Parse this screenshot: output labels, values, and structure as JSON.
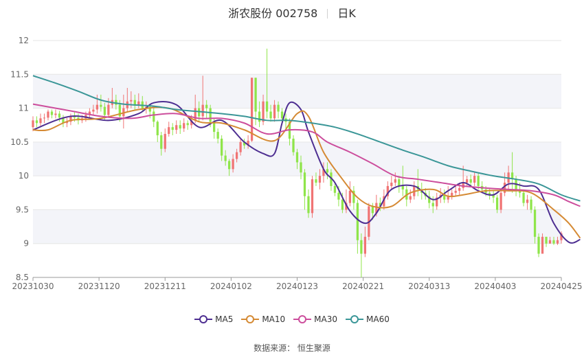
{
  "header": {
    "name": "浙农股份 002758",
    "period": "日K"
  },
  "source": "数据来源： 恒生聚源",
  "colors": {
    "up": "#f07474",
    "down": "#8fe54a",
    "MA5": "#4d2e91",
    "MA10": "#d58a34",
    "MA30": "#cc4d9c",
    "MA60": "#3a9697",
    "grid": "#e6e6e6",
    "band": "#f3f4f9"
  },
  "chart_data": {
    "type": "candlestick",
    "ylim": [
      8.5,
      12
    ],
    "yticks": [
      "8.5",
      "9",
      "9.5",
      "10",
      "10.5",
      "11",
      "11.5",
      "12"
    ],
    "xticks": [
      "20231030",
      "20231120",
      "20231211",
      "20240102",
      "20240123",
      "20240221",
      "20240313",
      "20240403",
      "20240425"
    ],
    "legend_position": "bottom",
    "series": [
      {
        "name": "MA5",
        "points": [
          [
            0,
            10.68
          ],
          [
            10,
            10.88
          ],
          [
            20,
            10.82
          ],
          [
            28,
            10.92
          ],
          [
            32,
            11.08
          ],
          [
            38,
            11.05
          ],
          [
            44,
            10.72
          ],
          [
            50,
            10.82
          ],
          [
            56,
            10.5
          ],
          [
            61,
            10.33
          ],
          [
            64,
            10.33
          ],
          [
            66,
            10.78
          ],
          [
            68,
            11.08
          ],
          [
            71,
            10.98
          ],
          [
            73,
            10.65
          ],
          [
            77,
            10.1
          ],
          [
            80,
            9.9
          ],
          [
            84,
            9.48
          ],
          [
            88,
            9.3
          ],
          [
            91,
            9.45
          ],
          [
            95,
            9.8
          ],
          [
            101,
            9.85
          ],
          [
            106,
            9.65
          ],
          [
            110,
            9.78
          ],
          [
            114,
            9.9
          ],
          [
            118,
            9.78
          ],
          [
            122,
            9.72
          ],
          [
            126,
            9.88
          ],
          [
            130,
            9.85
          ],
          [
            134,
            9.8
          ],
          [
            138,
            9.3
          ],
          [
            142,
            9.02
          ],
          [
            145,
            9.06
          ]
        ]
      },
      {
        "name": "MA10",
        "points": [
          [
            0,
            10.68
          ],
          [
            4,
            10.68
          ],
          [
            10,
            10.82
          ],
          [
            18,
            10.85
          ],
          [
            28,
            10.98
          ],
          [
            36,
            11.0
          ],
          [
            44,
            10.8
          ],
          [
            50,
            10.78
          ],
          [
            56,
            10.68
          ],
          [
            64,
            10.52
          ],
          [
            70,
            10.92
          ],
          [
            73,
            10.88
          ],
          [
            77,
            10.35
          ],
          [
            82,
            9.95
          ],
          [
            86,
            9.68
          ],
          [
            90,
            9.55
          ],
          [
            95,
            9.55
          ],
          [
            100,
            9.75
          ],
          [
            106,
            9.8
          ],
          [
            110,
            9.7
          ],
          [
            114,
            9.72
          ],
          [
            120,
            9.78
          ],
          [
            126,
            9.78
          ],
          [
            132,
            9.75
          ],
          [
            138,
            9.5
          ],
          [
            142,
            9.3
          ],
          [
            145,
            9.08
          ]
        ]
      },
      {
        "name": "MA30",
        "points": [
          [
            0,
            11.06
          ],
          [
            10,
            10.96
          ],
          [
            18,
            10.88
          ],
          [
            26,
            10.85
          ],
          [
            32,
            10.9
          ],
          [
            38,
            10.92
          ],
          [
            44,
            10.85
          ],
          [
            50,
            10.85
          ],
          [
            56,
            10.78
          ],
          [
            62,
            10.62
          ],
          [
            68,
            10.68
          ],
          [
            74,
            10.65
          ],
          [
            78,
            10.5
          ],
          [
            84,
            10.35
          ],
          [
            90,
            10.18
          ],
          [
            96,
            10.0
          ],
          [
            102,
            9.95
          ],
          [
            108,
            9.9
          ],
          [
            114,
            9.85
          ],
          [
            120,
            9.82
          ],
          [
            126,
            9.8
          ],
          [
            132,
            9.78
          ],
          [
            138,
            9.72
          ],
          [
            142,
            9.62
          ],
          [
            145,
            9.55
          ]
        ]
      },
      {
        "name": "MA60",
        "points": [
          [
            0,
            11.48
          ],
          [
            6,
            11.37
          ],
          [
            12,
            11.25
          ],
          [
            18,
            11.12
          ],
          [
            24,
            11.06
          ],
          [
            32,
            11.03
          ],
          [
            38,
            10.98
          ],
          [
            44,
            10.95
          ],
          [
            50,
            10.92
          ],
          [
            56,
            10.88
          ],
          [
            62,
            10.82
          ],
          [
            68,
            10.82
          ],
          [
            74,
            10.78
          ],
          [
            80,
            10.72
          ],
          [
            86,
            10.62
          ],
          [
            92,
            10.5
          ],
          [
            98,
            10.38
          ],
          [
            104,
            10.27
          ],
          [
            110,
            10.15
          ],
          [
            116,
            10.07
          ],
          [
            122,
            10.0
          ],
          [
            128,
            9.95
          ],
          [
            134,
            9.88
          ],
          [
            140,
            9.72
          ],
          [
            145,
            9.63
          ]
        ]
      }
    ],
    "candles": [
      [
        10.72,
        10.82,
        10.66,
        10.88
      ],
      [
        10.82,
        10.78,
        10.72,
        10.88
      ],
      [
        10.78,
        10.85,
        10.74,
        10.92
      ],
      [
        10.85,
        10.86,
        10.78,
        10.92
      ],
      [
        10.86,
        10.95,
        10.82,
        10.98
      ],
      [
        10.95,
        10.9,
        10.85,
        10.98
      ],
      [
        10.9,
        10.92,
        10.85,
        10.98
      ],
      [
        10.92,
        10.86,
        10.8,
        10.96
      ],
      [
        10.86,
        10.78,
        10.72,
        10.9
      ],
      [
        10.78,
        10.8,
        10.72,
        10.86
      ],
      [
        10.8,
        10.88,
        10.75,
        10.92
      ],
      [
        10.88,
        10.86,
        10.8,
        10.94
      ],
      [
        10.86,
        10.82,
        10.76,
        10.92
      ],
      [
        10.82,
        10.85,
        10.78,
        10.9
      ],
      [
        10.85,
        10.9,
        10.8,
        10.95
      ],
      [
        10.9,
        10.95,
        10.85,
        11.0
      ],
      [
        10.95,
        10.98,
        10.9,
        11.05
      ],
      [
        10.98,
        11.05,
        10.92,
        11.2
      ],
      [
        11.05,
        11.02,
        10.95,
        11.2
      ],
      [
        11.02,
        10.9,
        10.82,
        11.08
      ],
      [
        10.9,
        11.05,
        10.86,
        11.15
      ],
      [
        11.05,
        11.12,
        11.0,
        11.3
      ],
      [
        11.12,
        11.05,
        10.98,
        11.2
      ],
      [
        11.05,
        10.88,
        10.8,
        11.12
      ],
      [
        10.88,
        11.0,
        10.7,
        11.2
      ],
      [
        11.0,
        11.1,
        10.95,
        11.3
      ],
      [
        11.1,
        11.12,
        11.0,
        11.25
      ],
      [
        11.12,
        11.05,
        10.98,
        11.2
      ],
      [
        11.05,
        11.1,
        11.0,
        11.22
      ],
      [
        11.1,
        11.0,
        10.95,
        11.18
      ],
      [
        11.0,
        11.02,
        10.92,
        11.1
      ],
      [
        11.02,
        10.95,
        10.85,
        11.05
      ],
      [
        10.95,
        10.8,
        10.72,
        11.0
      ],
      [
        10.8,
        10.6,
        10.5,
        10.82
      ],
      [
        10.6,
        10.4,
        10.3,
        10.65
      ],
      [
        10.4,
        10.62,
        10.35,
        10.7
      ],
      [
        10.62,
        10.72,
        10.58,
        10.8
      ],
      [
        10.72,
        10.68,
        10.6,
        10.78
      ],
      [
        10.68,
        10.75,
        10.62,
        10.82
      ],
      [
        10.75,
        10.7,
        10.62,
        10.82
      ],
      [
        10.7,
        10.78,
        10.65,
        10.85
      ],
      [
        10.78,
        10.75,
        10.68,
        10.82
      ],
      [
        10.75,
        10.82,
        10.7,
        10.9
      ],
      [
        10.82,
        11.0,
        10.78,
        11.2
      ],
      [
        11.0,
        10.88,
        10.8,
        11.1
      ],
      [
        10.88,
        11.05,
        10.82,
        11.48
      ],
      [
        11.05,
        11.0,
        10.85,
        11.12
      ],
      [
        11.0,
        10.8,
        10.72,
        11.05
      ],
      [
        10.8,
        10.65,
        10.55,
        10.85
      ],
      [
        10.65,
        10.55,
        10.48,
        10.7
      ],
      [
        10.55,
        10.3,
        10.22,
        10.6
      ],
      [
        10.3,
        10.22,
        10.15,
        10.38
      ],
      [
        10.22,
        10.1,
        10.0,
        10.25
      ],
      [
        10.1,
        10.25,
        10.05,
        10.32
      ],
      [
        10.25,
        10.35,
        10.2,
        10.4
      ],
      [
        10.35,
        10.5,
        10.3,
        10.55
      ],
      [
        10.5,
        10.45,
        10.4,
        10.55
      ],
      [
        10.45,
        10.52,
        10.4,
        10.6
      ],
      [
        10.52,
        11.45,
        10.5,
        11.45
      ],
      [
        11.45,
        10.95,
        10.75,
        11.45
      ],
      [
        10.95,
        10.8,
        10.72,
        11.1
      ],
      [
        10.8,
        11.1,
        10.75,
        11.2
      ],
      [
        11.1,
        10.95,
        10.85,
        11.88
      ],
      [
        10.95,
        10.85,
        10.8,
        11.05
      ],
      [
        10.85,
        11.05,
        10.8,
        11.12
      ],
      [
        11.05,
        10.95,
        10.85,
        11.1
      ],
      [
        10.95,
        10.85,
        10.75,
        11.0
      ],
      [
        10.85,
        10.8,
        10.7,
        10.92
      ],
      [
        10.8,
        10.55,
        10.45,
        10.85
      ],
      [
        10.55,
        10.35,
        10.3,
        10.6
      ],
      [
        10.35,
        10.2,
        10.1,
        10.4
      ],
      [
        10.2,
        10.05,
        9.95,
        10.3
      ],
      [
        10.05,
        9.7,
        9.5,
        10.1
      ],
      [
        9.7,
        9.45,
        9.38,
        9.8
      ],
      [
        9.45,
        9.95,
        9.38,
        10.0
      ],
      [
        9.95,
        9.9,
        9.85,
        10.05
      ],
      [
        9.9,
        10.0,
        9.8,
        10.1
      ],
      [
        10.0,
        10.1,
        9.9,
        10.2
      ],
      [
        10.1,
        10.05,
        9.95,
        10.2
      ],
      [
        10.05,
        9.85,
        9.78,
        10.1
      ],
      [
        9.85,
        9.75,
        9.7,
        9.9
      ],
      [
        9.75,
        9.65,
        9.55,
        9.85
      ],
      [
        9.65,
        9.5,
        9.45,
        9.75
      ],
      [
        9.5,
        9.6,
        9.45,
        9.8
      ],
      [
        9.6,
        9.78,
        9.55,
        9.92
      ],
      [
        9.78,
        9.6,
        9.5,
        9.85
      ],
      [
        9.6,
        9.05,
        8.85,
        9.65
      ],
      [
        9.05,
        8.85,
        8.5,
        9.15
      ],
      [
        8.85,
        9.1,
        8.8,
        9.25
      ],
      [
        9.1,
        9.55,
        9.05,
        9.6
      ],
      [
        9.55,
        9.45,
        9.35,
        9.6
      ],
      [
        9.45,
        9.6,
        9.4,
        9.72
      ],
      [
        9.6,
        9.55,
        9.48,
        9.68
      ],
      [
        9.55,
        9.7,
        9.5,
        9.8
      ],
      [
        9.7,
        9.85,
        9.65,
        9.92
      ],
      [
        9.85,
        9.9,
        9.8,
        10.0
      ],
      [
        9.9,
        9.95,
        9.85,
        10.05
      ],
      [
        9.95,
        9.85,
        9.75,
        10.0
      ],
      [
        9.85,
        9.8,
        9.7,
        10.15
      ],
      [
        9.8,
        9.65,
        9.55,
        9.85
      ],
      [
        9.65,
        9.7,
        9.6,
        9.8
      ],
      [
        9.7,
        9.85,
        9.65,
        9.92
      ],
      [
        9.85,
        9.8,
        9.7,
        10.1
      ],
      [
        9.8,
        9.75,
        9.65,
        9.9
      ],
      [
        9.75,
        9.7,
        9.65,
        9.82
      ],
      [
        9.7,
        9.6,
        9.52,
        9.78
      ],
      [
        9.6,
        9.55,
        9.45,
        9.7
      ],
      [
        9.55,
        9.68,
        9.5,
        9.75
      ],
      [
        9.68,
        9.72,
        9.6,
        9.82
      ],
      [
        9.72,
        9.65,
        9.6,
        9.8
      ],
      [
        9.65,
        9.7,
        9.6,
        9.85
      ],
      [
        9.7,
        9.75,
        9.65,
        9.8
      ],
      [
        9.75,
        9.78,
        9.7,
        9.85
      ],
      [
        9.78,
        9.82,
        9.72,
        9.9
      ],
      [
        9.82,
        9.9,
        9.78,
        10.15
      ],
      [
        9.9,
        9.95,
        9.85,
        10.0
      ],
      [
        9.95,
        9.9,
        9.85,
        10.02
      ],
      [
        9.9,
        10.0,
        9.85,
        10.05
      ],
      [
        10.0,
        9.85,
        9.8,
        10.05
      ],
      [
        9.85,
        9.8,
        9.75,
        9.92
      ],
      [
        9.8,
        9.75,
        9.7,
        9.85
      ],
      [
        9.75,
        9.72,
        9.65,
        9.82
      ],
      [
        9.72,
        9.68,
        9.6,
        9.78
      ],
      [
        9.68,
        9.5,
        9.45,
        9.72
      ],
      [
        9.5,
        9.75,
        9.45,
        9.8
      ],
      [
        9.75,
        9.9,
        9.7,
        10.05
      ],
      [
        9.9,
        10.05,
        9.8,
        10.15
      ],
      [
        10.05,
        9.95,
        9.75,
        10.35
      ],
      [
        9.95,
        9.8,
        9.7,
        10.0
      ],
      [
        9.8,
        9.75,
        9.68,
        9.9
      ],
      [
        9.75,
        9.6,
        9.55,
        9.8
      ],
      [
        9.6,
        9.65,
        9.5,
        9.72
      ],
      [
        9.65,
        9.5,
        9.45,
        9.7
      ],
      [
        9.5,
        9.1,
        9.0,
        9.55
      ],
      [
        9.1,
        8.85,
        8.8,
        9.15
      ],
      [
        8.85,
        9.1,
        8.85,
        9.15
      ],
      [
        9.1,
        9.0,
        8.95,
        9.1
      ],
      [
        9.0,
        9.05,
        9.0,
        9.1
      ],
      [
        9.05,
        9.0,
        8.98,
        9.1
      ],
      [
        9.0,
        9.05,
        8.98,
        9.1
      ],
      [
        9.05,
        9.15,
        9.0,
        9.18
      ]
    ]
  }
}
